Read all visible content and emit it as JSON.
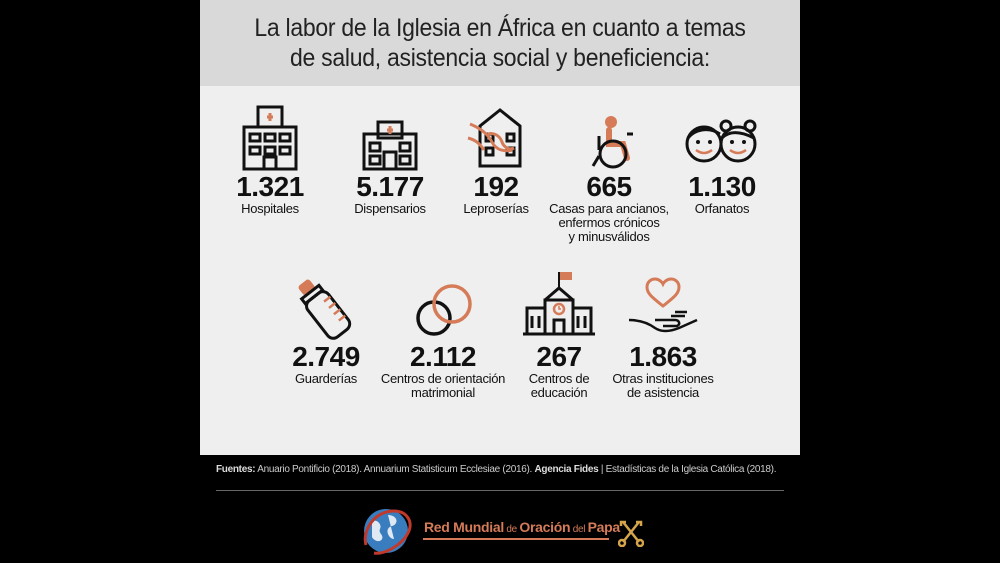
{
  "title": {
    "line1": "La labor de la Iglesia en África  en cuanto a temas",
    "line2": "de salud, asistencia social y beneficiencia:"
  },
  "stats": [
    {
      "icon": "hospital-icon",
      "value": "1.321",
      "label": "Hospitales"
    },
    {
      "icon": "dispensary-icon",
      "value": "5.177",
      "label": "Dispensarios"
    },
    {
      "icon": "leprosy-hands-icon",
      "value": "192",
      "label": "Leproserías"
    },
    {
      "icon": "wheelchair-icon",
      "value": "665",
      "label_lines": [
        "Casas para ancianos,",
        "enfermos crónicos",
        "y minusválidos"
      ]
    },
    {
      "icon": "children-faces-icon",
      "value": "1.130",
      "label": "Orfanatos"
    },
    {
      "icon": "baby-bottle-icon",
      "value": "2.749",
      "label": "Guarderías"
    },
    {
      "icon": "wedding-rings-icon",
      "value": "2.112",
      "label_lines": [
        "Centros de orientación",
        "matrimonial"
      ]
    },
    {
      "icon": "school-icon",
      "value": "267",
      "label_lines": [
        "Centros de",
        "educación"
      ]
    },
    {
      "icon": "heart-hand-icon",
      "value": "1.863",
      "label_lines": [
        "Otras instituciones",
        "de asistencia"
      ]
    }
  ],
  "footer": {
    "sources_label": "Fuentes:",
    "sources_text": " Anuario Pontificio (2018). Annuarium Statisticum Ecclesiae (2016). ",
    "agency": "Agencia Fides",
    "tail": " | Estadísticas de la Iglesia Católica (2018)."
  },
  "logo": {
    "main": "Red Mundial",
    "de": " de ",
    "middle": "Oración",
    "del": " del ",
    "end": "Papa"
  },
  "colors": {
    "accent": "#d57b58",
    "panel": "#efefef",
    "band": "#d9d9d9"
  }
}
